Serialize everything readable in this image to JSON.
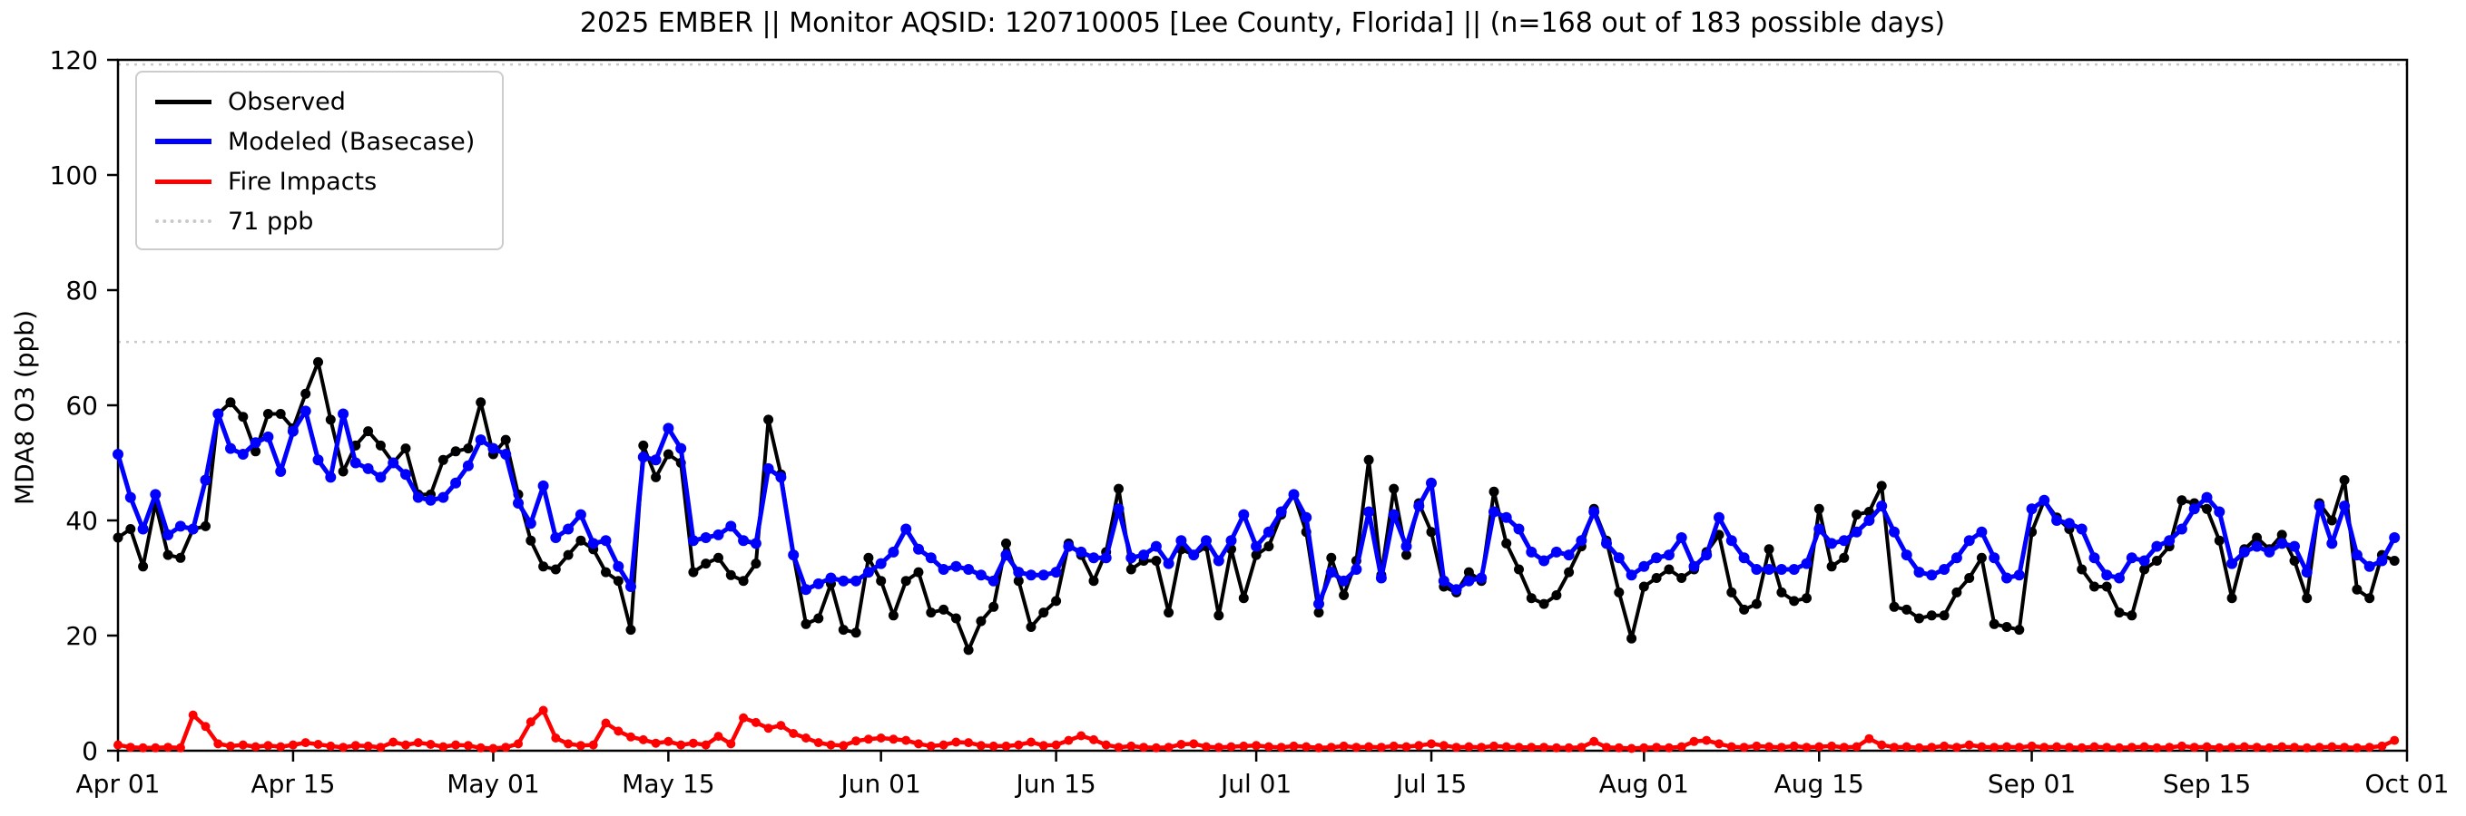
{
  "header": {
    "title": "2025 EMBER || Monitor AQSID: 120710005 [Lee County, Florida] || (n=168 out of 183 possible days)"
  },
  "chart_data": {
    "type": "line",
    "title": "2025 EMBER || Monitor AQSID: 120710005 [Lee County, Florida] || (n=168 out of 183 possible days)",
    "xlabel": "",
    "ylabel": "MDA8 O3 (ppb)",
    "ylim": [
      0,
      120
    ],
    "yticks": [
      0,
      20,
      40,
      60,
      80,
      100,
      120
    ],
    "x_tick_labels": [
      "Apr 01",
      "Apr 15",
      "May 01",
      "May 15",
      "Jun 01",
      "Jun 15",
      "Jul 01",
      "Jul 15",
      "Aug 01",
      "Aug 15",
      "Sep 01",
      "Sep 15",
      "Oct 01"
    ],
    "x_tick_days": [
      0,
      14,
      30,
      44,
      61,
      75,
      91,
      105,
      122,
      136,
      153,
      167,
      183
    ],
    "n_days": 183,
    "date_range": "Apr 01 - Oct 01",
    "grid": false,
    "legend_position": "upper left",
    "threshold": {
      "label": "71 ppb",
      "value": 71,
      "color": "#c9c9c9",
      "style": "dotted"
    },
    "top_dotted_value": 119.2,
    "series": [
      {
        "name": "Observed",
        "color": "#000000",
        "values": [
          37,
          38.5,
          32,
          43,
          34,
          33.5,
          38.5,
          39,
          58.5,
          60.5,
          58,
          52,
          58.5,
          58.5,
          56,
          62,
          67.5,
          57.5,
          48.5,
          53,
          55.5,
          53,
          50,
          52.5,
          44.5,
          44.5,
          50.5,
          52,
          52.5,
          60.5,
          51.5,
          54,
          44.5,
          36.5,
          32,
          31.5,
          34,
          36.5,
          35,
          31,
          29.5,
          21,
          53,
          47.5,
          51.5,
          50,
          31,
          32.5,
          33.5,
          30.5,
          29.5,
          32.5,
          57.5,
          48,
          34,
          22,
          23,
          29,
          21,
          20.5,
          33.5,
          29.5,
          23.5,
          29.5,
          31,
          24,
          24.5,
          23,
          17.5,
          22.5,
          25,
          36,
          29.5,
          21.5,
          24,
          26,
          36,
          34,
          29.5,
          34.5,
          45.5,
          31.5,
          33,
          33,
          24,
          35,
          34,
          35.5,
          23.5,
          35,
          26.5,
          34,
          35.5,
          41,
          44.5,
          38,
          24,
          33.5,
          27,
          33,
          50.5,
          30.5,
          45.5,
          34,
          43,
          38,
          28.5,
          27.5,
          31,
          29.5,
          45,
          36,
          31.5,
          26.5,
          25.5,
          27,
          31,
          35.5,
          42,
          36.5,
          27.5,
          19.5,
          28.5,
          30,
          31.5,
          30,
          31.5,
          34.5,
          37.5,
          27.5,
          24.5,
          25.5,
          35,
          27.5,
          26,
          26.5,
          42,
          32,
          33.5,
          41,
          41.5,
          46,
          25,
          24.5,
          23,
          23.5,
          23.5,
          27.5,
          30,
          33.5,
          22,
          21.5,
          21,
          38,
          43.5,
          40.5,
          38.5,
          31.5,
          28.5,
          28.5,
          24,
          23.5,
          31.5,
          33,
          35.5,
          43.5,
          43,
          42,
          36.5,
          26.5,
          35,
          37,
          35,
          37.5,
          33,
          26.5,
          43,
          40,
          47,
          28,
          26.5,
          34,
          33
        ]
      },
      {
        "name": "Modeled (Basecase)",
        "color": "#0000ff",
        "values": [
          51.5,
          44,
          38.5,
          44.5,
          37.5,
          39,
          38.5,
          47,
          58.5,
          52.5,
          51.5,
          53.5,
          54.5,
          48.5,
          55.5,
          59,
          50.5,
          47.5,
          58.5,
          50,
          49,
          47.5,
          50,
          48,
          44,
          43.5,
          44,
          46.5,
          49.5,
          54,
          52.5,
          51.5,
          43,
          39.5,
          46,
          37,
          38.5,
          41,
          36,
          36.5,
          32,
          28.5,
          51,
          50.5,
          56,
          52.5,
          36.5,
          37,
          37.5,
          39,
          36.5,
          36,
          49,
          47.5,
          34,
          28,
          29,
          30,
          29.5,
          29.5,
          31,
          32.5,
          34.5,
          38.5,
          35,
          33.5,
          31.5,
          32,
          31.5,
          30.5,
          29.5,
          34,
          31,
          30.5,
          30.5,
          31,
          35.5,
          34.5,
          33.5,
          33.5,
          42,
          33.5,
          34,
          35.5,
          32.5,
          36.5,
          34,
          36.5,
          33,
          36.5,
          41,
          35.5,
          38,
          41.5,
          44.5,
          40.5,
          25.5,
          31,
          29.5,
          31.5,
          41.5,
          30,
          41,
          35.5,
          42.5,
          46.5,
          29.5,
          28,
          29.5,
          30,
          41.5,
          40.5,
          38.5,
          34.5,
          33,
          34.5,
          34,
          36.5,
          41.5,
          36,
          33.5,
          30.5,
          32,
          33.5,
          34,
          37,
          32,
          34,
          40.5,
          36.5,
          33.5,
          31.5,
          31.5,
          31.5,
          31.5,
          32.5,
          38.5,
          36,
          36.5,
          38,
          40,
          42.5,
          38,
          34,
          31,
          30.5,
          31.5,
          33.5,
          36.5,
          38,
          33.5,
          30,
          30.5,
          42,
          43.5,
          40,
          39.5,
          38.5,
          33.5,
          30.5,
          30,
          33.5,
          33,
          35.5,
          36.5,
          38.5,
          42,
          44,
          41.5,
          32.5,
          34.5,
          35.5,
          34.5,
          36,
          35.5,
          31,
          42.5,
          36,
          42.5,
          34,
          32,
          33,
          37
        ]
      },
      {
        "name": "Fire Impacts",
        "color": "#ff0000",
        "values": [
          1,
          0.6,
          0.5,
          0.5,
          0.6,
          0.5,
          6.2,
          4.2,
          1.2,
          0.8,
          1,
          0.7,
          0.9,
          0.7,
          1,
          1.4,
          1.1,
          0.8,
          0.6,
          0.9,
          0.8,
          0.6,
          1.5,
          1,
          1.4,
          1.1,
          0.7,
          1,
          0.9,
          0.5,
          0.4,
          0.6,
          1.2,
          5,
          7,
          2.2,
          1.2,
          0.9,
          1,
          4.8,
          3.4,
          2.4,
          1.9,
          1.3,
          1.6,
          1,
          1.3,
          1,
          2.5,
          1.2,
          5.7,
          4.9,
          3.9,
          4.4,
          3,
          2.2,
          1.4,
          1,
          0.9,
          1.7,
          2,
          2.2,
          2,
          1.8,
          1.2,
          0.8,
          1,
          1.5,
          1.4,
          0.9,
          0.8,
          0.8,
          1,
          1.5,
          0.9,
          1,
          1.8,
          2.6,
          1.9,
          1,
          0.6,
          0.8,
          0.6,
          0.5,
          0.6,
          1.1,
          1.2,
          0.7,
          0.6,
          0.7,
          0.8,
          0.9,
          0.7,
          0.6,
          0.8,
          0.7,
          0.5,
          0.6,
          0.8,
          0.6,
          0.7,
          0.6,
          0.8,
          0.7,
          0.9,
          1.2,
          0.9,
          0.6,
          0.7,
          0.6,
          0.8,
          0.7,
          0.6,
          0.6,
          0.6,
          0.5,
          0.5,
          0.6,
          1.6,
          0.6,
          0.5,
          0.4,
          0.5,
          0.6,
          0.5,
          0.7,
          1.6,
          1.8,
          1.2,
          0.7,
          0.6,
          0.8,
          0.7,
          0.6,
          0.8,
          0.6,
          0.7,
          0.8,
          0.6,
          0.7,
          2.1,
          1,
          0.6,
          0.7,
          0.5,
          0.6,
          0.8,
          0.6,
          1,
          0.7,
          0.6,
          0.7,
          0.6,
          0.8,
          0.6,
          0.7,
          0.6,
          0.5,
          0.7,
          0.6,
          0.5,
          0.6,
          0.7,
          0.5,
          0.6,
          0.8,
          0.6,
          0.7,
          0.5,
          0.6,
          0.7,
          0.6,
          0.5,
          0.7,
          0.6,
          0.5,
          0.6,
          0.7,
          0.6,
          0.5,
          0.6,
          0.8,
          1.8
        ]
      }
    ]
  }
}
